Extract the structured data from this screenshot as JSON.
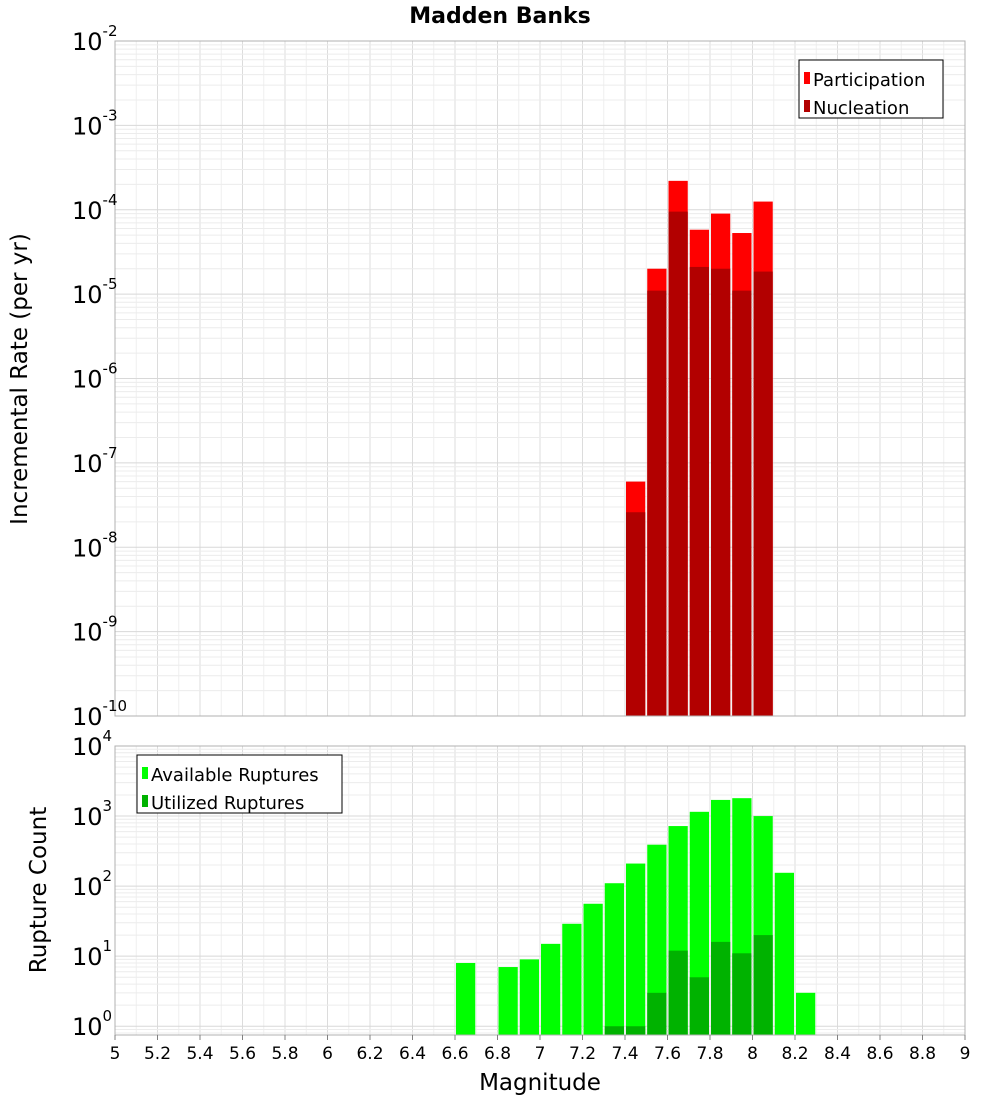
{
  "chart_data": [
    {
      "type": "bar",
      "title": "Madden Banks",
      "xlabel": "",
      "ylabel": "Incremental Rate (per yr)",
      "yscale": "log",
      "ylim": [
        1e-10,
        0.01
      ],
      "xlim": [
        5,
        9
      ],
      "grid": true,
      "legend_position": "top-right",
      "y_tick_labels": [
        {
          "base": "10",
          "exp": "-10",
          "value": 1e-10
        },
        {
          "base": "10",
          "exp": "-9",
          "value": 1e-09
        },
        {
          "base": "10",
          "exp": "-8",
          "value": 1e-08
        },
        {
          "base": "10",
          "exp": "-7",
          "value": 1e-07
        },
        {
          "base": "10",
          "exp": "-6",
          "value": 1e-06
        },
        {
          "base": "10",
          "exp": "-5",
          "value": 1e-05
        },
        {
          "base": "10",
          "exp": "-4",
          "value": 0.0001
        },
        {
          "base": "10",
          "exp": "-3",
          "value": 0.001
        },
        {
          "base": "10",
          "exp": "-2",
          "value": 0.01
        }
      ],
      "x": [
        7.45,
        7.55,
        7.65,
        7.75,
        7.85,
        7.95,
        8.05
      ],
      "series": [
        {
          "name": "Participation",
          "color": "#ff0000",
          "values": [
            6e-08,
            2e-05,
            0.00022,
            5.8e-05,
            9e-05,
            5.3e-05,
            0.000125
          ]
        },
        {
          "name": "Nucleation",
          "color": "#b20000",
          "values": [
            2.6e-08,
            1.1e-05,
            9.5e-05,
            2.1e-05,
            2e-05,
            1.1e-05,
            1.85e-05
          ]
        }
      ]
    },
    {
      "type": "bar",
      "title": "",
      "xlabel": "Magnitude",
      "ylabel": "Rupture Count",
      "yscale": "log",
      "ylim": [
        0.75,
        10000
      ],
      "xlim": [
        5,
        9
      ],
      "grid": true,
      "legend_position": "top-left",
      "y_tick_labels": [
        {
          "base": "10",
          "exp": "0",
          "value": 1
        },
        {
          "base": "10",
          "exp": "1",
          "value": 10
        },
        {
          "base": "10",
          "exp": "2",
          "value": 100
        },
        {
          "base": "10",
          "exp": "3",
          "value": 1000
        },
        {
          "base": "10",
          "exp": "4",
          "value": 10000
        }
      ],
      "x_tick_labels": [
        "5",
        "5.2",
        "5.4",
        "5.6",
        "5.8",
        "6",
        "6.2",
        "6.4",
        "6.6",
        "6.8",
        "7",
        "7.2",
        "7.4",
        "7.6",
        "7.8",
        "8",
        "8.2",
        "8.4",
        "8.6",
        "8.8",
        "9"
      ],
      "series": [
        {
          "name": "Available Ruptures",
          "color": "#00ff00",
          "x": [
            6.65,
            6.85,
            6.95,
            7.05,
            7.15,
            7.25,
            7.35,
            7.45,
            7.55,
            7.65,
            7.75,
            7.85,
            7.95,
            8.05,
            8.15,
            8.25
          ],
          "values": [
            8,
            7,
            9,
            15,
            29,
            56,
            110,
            210,
            390,
            720,
            1150,
            1700,
            1800,
            1000,
            155,
            3
          ]
        },
        {
          "name": "Utilized Ruptures",
          "color": "#00b200",
          "x": [
            7.35,
            7.45,
            7.55,
            7.65,
            7.75,
            7.85,
            7.95,
            8.05
          ],
          "values": [
            1,
            1,
            3,
            12,
            5,
            16,
            11,
            20
          ]
        }
      ]
    }
  ]
}
